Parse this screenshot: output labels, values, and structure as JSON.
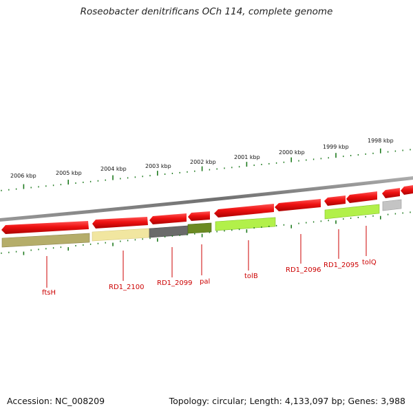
{
  "title": "Roseobacter denitrificans OCh 114, complete genome",
  "footer": {
    "accession": "Accession: NC_008209",
    "summary": "Topology: circular; Length: 4,133,097 bp; Genes: 3,988"
  },
  "scale_labels": [
    "2006 kbp",
    "2005 kbp",
    "2004 kbp",
    "2003 kbp",
    "2002 kbp",
    "2001 kbp",
    "2000 kbp",
    "1999 kbp",
    "1998 kbp"
  ],
  "gene_labels": [
    "ftsH",
    "RD1_2100",
    "RD1_2099",
    "pal",
    "tolB",
    "RD1_2096",
    "RD1_2095",
    "tolQ"
  ],
  "colors": {
    "backbone": "#8a8a8a",
    "gene_arrow": "#ee1111",
    "tick": "#1e7a1e",
    "label": "#cc0000",
    "cog_olive_light": "#b5ad6a",
    "cog_yellow": "#f1e6a0",
    "cog_dark_grey": "#6a6a6a",
    "cog_olive_dark": "#6b8a22",
    "cog_lime": "#b2f04a",
    "cog_light_grey": "#c4c4c4"
  }
}
